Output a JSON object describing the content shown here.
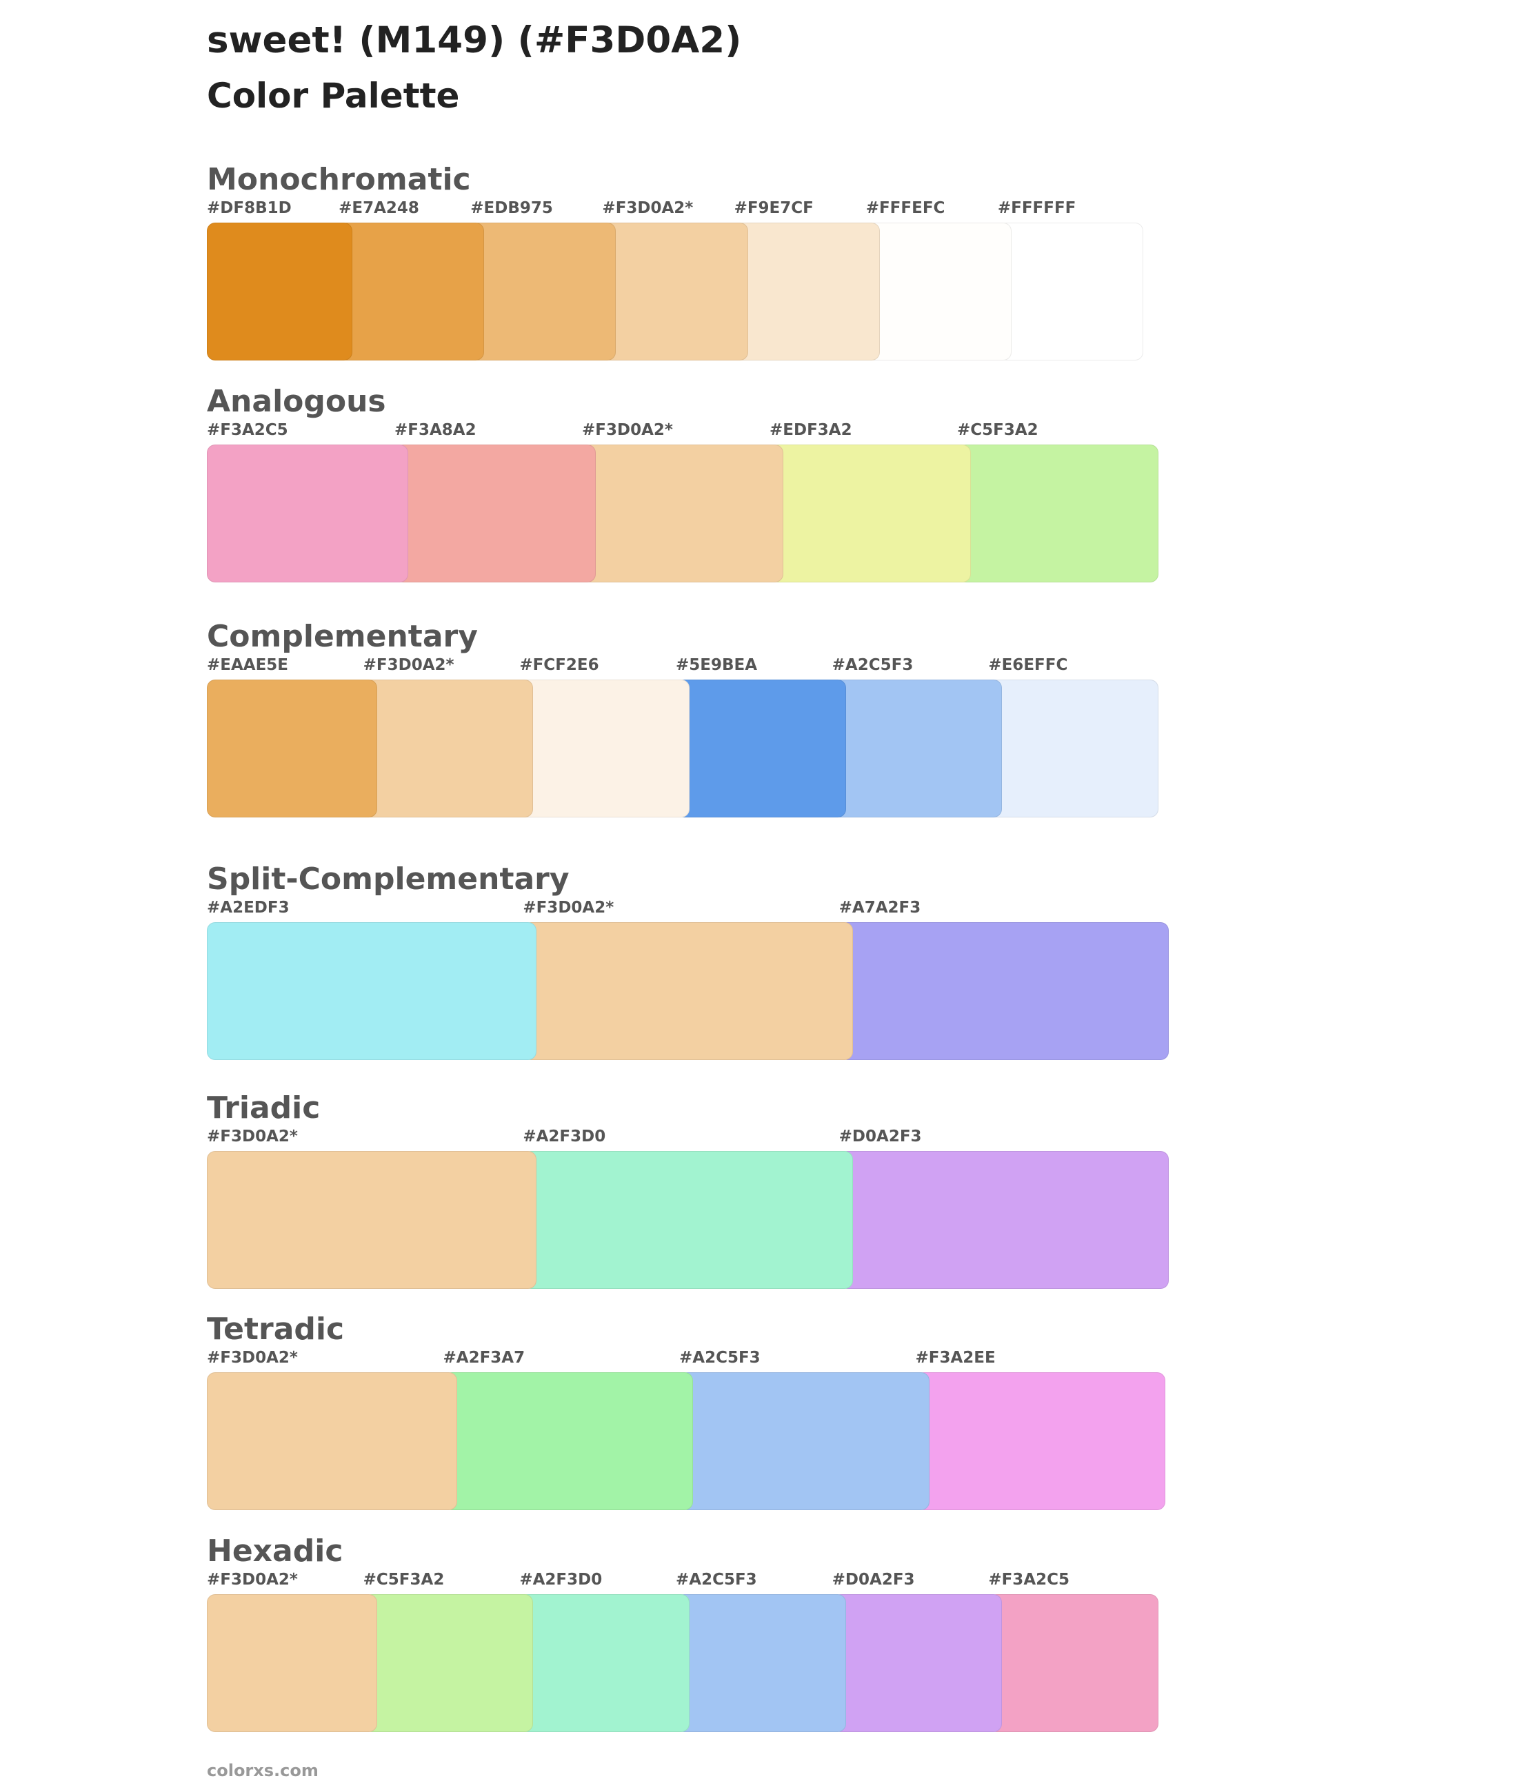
{
  "title": "sweet! (M149) (#F3D0A2)",
  "subtitle": "Color Palette",
  "footer": "colorxs.com",
  "sections": [
    {
      "name": "Monochromatic",
      "colors": [
        {
          "label": "#DF8B1D",
          "hex": "#DF8B1D"
        },
        {
          "label": "#E7A248",
          "hex": "#E7A248"
        },
        {
          "label": "#EDB975",
          "hex": "#EDB975"
        },
        {
          "label": "#F3D0A2*",
          "hex": "#F3D0A2"
        },
        {
          "label": "#F9E7CF",
          "hex": "#F9E7CF"
        },
        {
          "label": "#FFFEFC",
          "hex": "#FFFEFC"
        },
        {
          "label": "#FFFFFF",
          "hex": "#FFFFFF"
        }
      ]
    },
    {
      "name": "Analogous",
      "colors": [
        {
          "label": "#F3A2C5",
          "hex": "#F3A2C5"
        },
        {
          "label": "#F3A8A2",
          "hex": "#F3A8A2"
        },
        {
          "label": "#F3D0A2*",
          "hex": "#F3D0A2"
        },
        {
          "label": "#EDF3A2",
          "hex": "#EDF3A2"
        },
        {
          "label": "#C5F3A2",
          "hex": "#C5F3A2"
        }
      ]
    },
    {
      "name": "Complementary",
      "colors": [
        {
          "label": "#EAAE5E",
          "hex": "#EAAE5E"
        },
        {
          "label": "#F3D0A2*",
          "hex": "#F3D0A2"
        },
        {
          "label": "#FCF2E6",
          "hex": "#FCF2E6"
        },
        {
          "label": "#5E9BEA",
          "hex": "#5E9BEA"
        },
        {
          "label": "#A2C5F3",
          "hex": "#A2C5F3"
        },
        {
          "label": "#E6EFFC",
          "hex": "#E6EFFC"
        }
      ]
    },
    {
      "name": "Split-Complementary",
      "colors": [
        {
          "label": "#A2EDF3",
          "hex": "#A2EDF3"
        },
        {
          "label": "#F3D0A2*",
          "hex": "#F3D0A2"
        },
        {
          "label": "#A7A2F3",
          "hex": "#A7A2F3"
        }
      ]
    },
    {
      "name": "Triadic",
      "colors": [
        {
          "label": "#F3D0A2*",
          "hex": "#F3D0A2"
        },
        {
          "label": "#A2F3D0",
          "hex": "#A2F3D0"
        },
        {
          "label": "#D0A2F3",
          "hex": "#D0A2F3"
        }
      ]
    },
    {
      "name": "Tetradic",
      "colors": [
        {
          "label": "#F3D0A2*",
          "hex": "#F3D0A2"
        },
        {
          "label": "#A2F3A7",
          "hex": "#A2F3A7"
        },
        {
          "label": "#A2C5F3",
          "hex": "#A2C5F3"
        },
        {
          "label": "#F3A2EE",
          "hex": "#F3A2EE"
        }
      ]
    },
    {
      "name": "Hexadic",
      "colors": [
        {
          "label": "#F3D0A2*",
          "hex": "#F3D0A2"
        },
        {
          "label": "#C5F3A2",
          "hex": "#C5F3A2"
        },
        {
          "label": "#A2F3D0",
          "hex": "#A2F3D0"
        },
        {
          "label": "#A2C5F3",
          "hex": "#A2C5F3"
        },
        {
          "label": "#D0A2F3",
          "hex": "#D0A2F3"
        },
        {
          "label": "#F3A2C5",
          "hex": "#F3A2C5"
        }
      ]
    }
  ]
}
